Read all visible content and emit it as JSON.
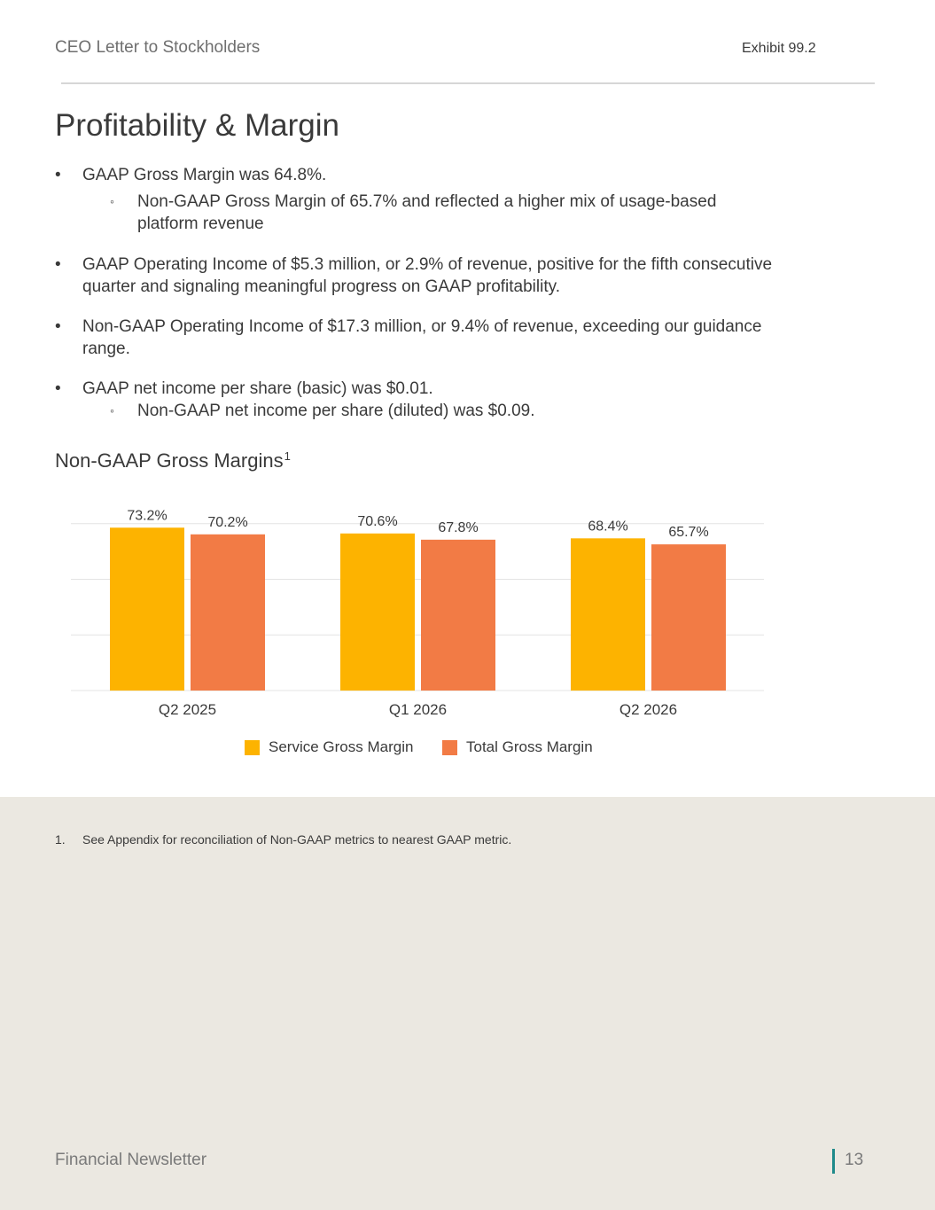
{
  "header": {
    "left": "CEO Letter to Stockholders",
    "right": "Exhibit 99.2"
  },
  "title": "Profitability & Margin",
  "bullets": {
    "b1": {
      "mark": "•",
      "text": "GAAP Gross Margin was 64.8%."
    },
    "b1s1": {
      "mark": "◦",
      "line1": "Non-GAAP Gross Margin of 65.7% and reflected a higher mix of usage-based",
      "line2": "platform revenue"
    },
    "b2": {
      "mark": "•",
      "line1": "GAAP Operating Income of $5.3 million, or 2.9% of revenue, positive for the fifth consecutive",
      "line2": "quarter and signaling meaningful progress on GAAP profitability."
    },
    "b3": {
      "mark": "•",
      "line1": "Non-GAAP Operating Income of $17.3 million, or 9.4% of revenue, exceeding our guidance",
      "line2": "range."
    },
    "b4": {
      "mark": "•",
      "text": "GAAP net income per share (basic) was $0.01."
    },
    "b4s1": {
      "mark": "◦",
      "text": "Non-GAAP net income per share (diluted) was $0.09."
    }
  },
  "chart_title": {
    "text": "Non-GAAP Gross Margins",
    "sup": "1"
  },
  "chart_data": {
    "type": "bar",
    "title": "Non-GAAP Gross Margins",
    "categories": [
      "Q2 2025",
      "Q1 2026",
      "Q2 2026"
    ],
    "series": [
      {
        "name": "Service Gross Margin",
        "values": [
          73.2,
          70.6,
          68.4
        ],
        "labels": [
          "73.2%",
          "70.6%",
          "68.4%"
        ],
        "color": "#fdb300"
      },
      {
        "name": "Total Gross Margin",
        "values": [
          70.2,
          67.8,
          65.7
        ],
        "labels": [
          "70.2%",
          "67.8%",
          "65.7%"
        ],
        "color": "#f27b45"
      }
    ],
    "ylim": [
      0,
      75
    ],
    "grid": true,
    "legend": "bottom"
  },
  "footnote": {
    "number": "1.",
    "text": "See Appendix for reconciliation of Non-GAAP metrics to nearest GAAP metric."
  },
  "footer": {
    "left": "Financial Newsletter",
    "page": "13",
    "accent_color": "#1f8a8a"
  }
}
